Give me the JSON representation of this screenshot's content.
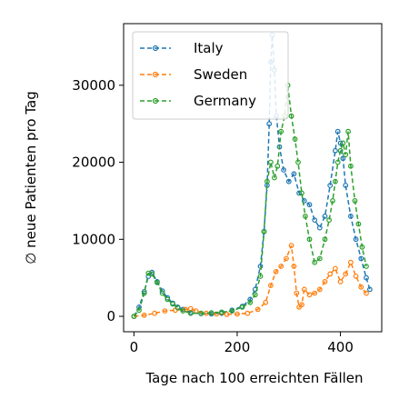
{
  "chart_data": {
    "type": "line",
    "xlabel": "Tage nach 100 erreichten Fällen",
    "ylabel": "∅ neue Patienten pro Tag",
    "xlim": [
      -20,
      480
    ],
    "ylim": [
      -2000,
      38000
    ],
    "xticks": [
      0,
      200,
      400
    ],
    "yticks": [
      0,
      10000,
      20000,
      30000
    ],
    "legend_position": "top-left",
    "grid": false,
    "series": [
      {
        "name": "Italy",
        "color": "#1f77b4",
        "points": [
          [
            0,
            0
          ],
          [
            10,
            1200
          ],
          [
            20,
            3200
          ],
          [
            28,
            5200
          ],
          [
            35,
            5700
          ],
          [
            45,
            4500
          ],
          [
            55,
            3300
          ],
          [
            65,
            2400
          ],
          [
            75,
            1700
          ],
          [
            85,
            1200
          ],
          [
            95,
            900
          ],
          [
            110,
            500
          ],
          [
            130,
            350
          ],
          [
            150,
            300
          ],
          [
            170,
            400
          ],
          [
            190,
            800
          ],
          [
            210,
            1300
          ],
          [
            225,
            2200
          ],
          [
            235,
            3500
          ],
          [
            245,
            6500
          ],
          [
            252,
            11000
          ],
          [
            258,
            17000
          ],
          [
            262,
            25000
          ],
          [
            265,
            33000
          ],
          [
            268,
            36500
          ],
          [
            272,
            32000
          ],
          [
            276,
            26000
          ],
          [
            282,
            22000
          ],
          [
            290,
            19000
          ],
          [
            300,
            17500
          ],
          [
            310,
            18500
          ],
          [
            320,
            16000
          ],
          [
            330,
            15000
          ],
          [
            340,
            14500
          ],
          [
            350,
            12500
          ],
          [
            360,
            11500
          ],
          [
            370,
            13000
          ],
          [
            380,
            17000
          ],
          [
            390,
            21500
          ],
          [
            395,
            24000
          ],
          [
            400,
            22500
          ],
          [
            405,
            20500
          ],
          [
            410,
            17000
          ],
          [
            420,
            13000
          ],
          [
            430,
            10000
          ],
          [
            440,
            7500
          ],
          [
            450,
            5000
          ],
          [
            457,
            3500
          ]
        ]
      },
      {
        "name": "Sweden",
        "color": "#ff7f0e",
        "points": [
          [
            0,
            0
          ],
          [
            20,
            150
          ],
          [
            40,
            400
          ],
          [
            60,
            700
          ],
          [
            80,
            800
          ],
          [
            100,
            900
          ],
          [
            110,
            1000
          ],
          [
            120,
            700
          ],
          [
            140,
            400
          ],
          [
            160,
            300
          ],
          [
            180,
            250
          ],
          [
            200,
            300
          ],
          [
            220,
            400
          ],
          [
            240,
            900
          ],
          [
            255,
            1800
          ],
          [
            265,
            4000
          ],
          [
            275,
            5800
          ],
          [
            285,
            6500
          ],
          [
            295,
            7500
          ],
          [
            305,
            9200
          ],
          [
            310,
            6500
          ],
          [
            315,
            3000
          ],
          [
            320,
            1200
          ],
          [
            325,
            1500
          ],
          [
            330,
            3500
          ],
          [
            340,
            2800
          ],
          [
            350,
            3000
          ],
          [
            360,
            3500
          ],
          [
            370,
            4500
          ],
          [
            380,
            5500
          ],
          [
            390,
            6200
          ],
          [
            400,
            4500
          ],
          [
            410,
            5500
          ],
          [
            420,
            7000
          ],
          [
            430,
            5200
          ],
          [
            440,
            3800
          ],
          [
            450,
            3000
          ]
        ]
      },
      {
        "name": "Germany",
        "color": "#2ca02c",
        "points": [
          [
            0,
            0
          ],
          [
            10,
            800
          ],
          [
            20,
            3000
          ],
          [
            28,
            5600
          ],
          [
            35,
            5500
          ],
          [
            45,
            4400
          ],
          [
            55,
            3000
          ],
          [
            65,
            2200
          ],
          [
            75,
            1600
          ],
          [
            85,
            1100
          ],
          [
            95,
            700
          ],
          [
            110,
            400
          ],
          [
            130,
            400
          ],
          [
            150,
            450
          ],
          [
            170,
            550
          ],
          [
            190,
            700
          ],
          [
            210,
            1200
          ],
          [
            225,
            1800
          ],
          [
            235,
            2800
          ],
          [
            245,
            5200
          ],
          [
            252,
            11000
          ],
          [
            258,
            17500
          ],
          [
            265,
            20000
          ],
          [
            272,
            18000
          ],
          [
            278,
            19500
          ],
          [
            285,
            24000
          ],
          [
            292,
            26000
          ],
          [
            298,
            30000
          ],
          [
            305,
            26000
          ],
          [
            312,
            23000
          ],
          [
            318,
            20000
          ],
          [
            325,
            16000
          ],
          [
            332,
            13000
          ],
          [
            340,
            10000
          ],
          [
            350,
            7000
          ],
          [
            360,
            7500
          ],
          [
            370,
            10000
          ],
          [
            378,
            12500
          ],
          [
            385,
            15000
          ],
          [
            390,
            17500
          ],
          [
            395,
            20000
          ],
          [
            400,
            21500
          ],
          [
            405,
            22500
          ],
          [
            410,
            21000
          ],
          [
            415,
            24000
          ],
          [
            420,
            19500
          ],
          [
            428,
            15000
          ],
          [
            435,
            12000
          ],
          [
            442,
            9000
          ],
          [
            450,
            6500
          ]
        ]
      }
    ]
  }
}
